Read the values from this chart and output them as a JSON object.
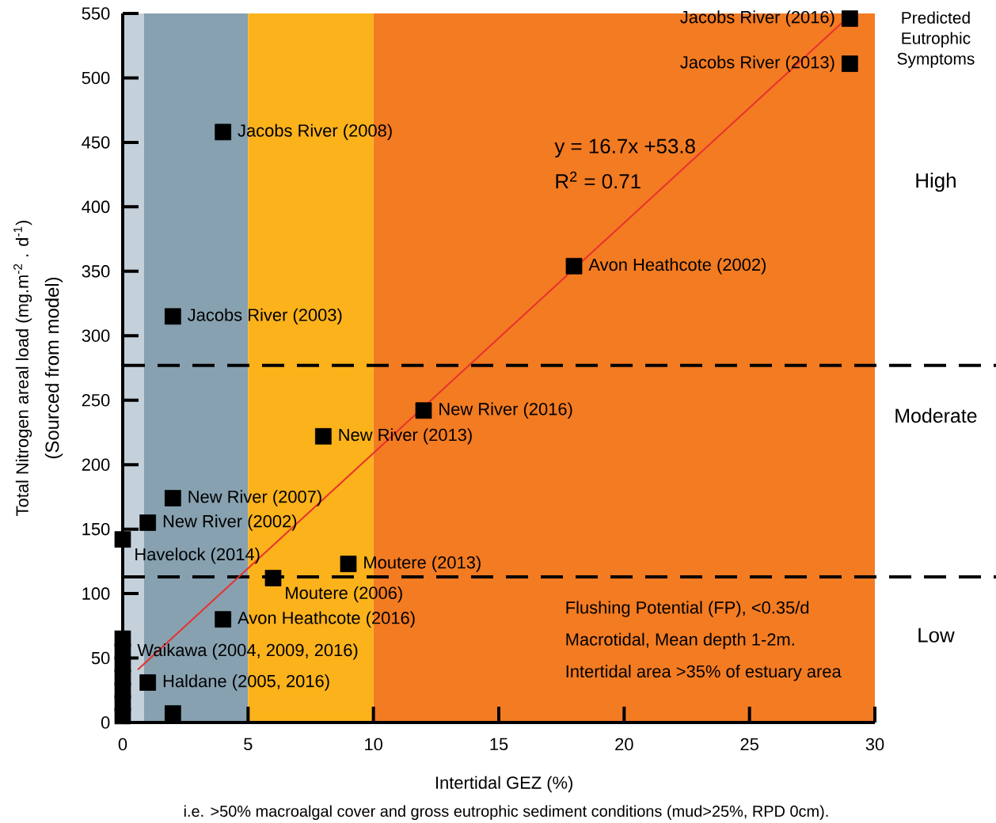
{
  "chart_data": {
    "type": "scatter",
    "xlabel": "Intertidal GEZ (%)",
    "ylabel": "Total Nitrogen areal load (mg.m$^{-2}$ . d$^{-1}$)",
    "xlim": [
      0,
      30
    ],
    "ylim": [
      0,
      550
    ],
    "xticks": [
      0,
      5,
      10,
      15,
      20,
      25,
      30
    ],
    "yticks": [
      0,
      50,
      100,
      150,
      200,
      250,
      300,
      350,
      400,
      450,
      500,
      550
    ],
    "grid": false,
    "series": [
      {
        "marker": "square",
        "color": "#000000",
        "x": [
          29,
          29,
          4,
          18,
          2,
          12,
          8,
          2,
          1,
          0,
          9,
          6,
          4,
          1,
          2,
          0,
          0,
          0,
          0,
          0,
          0,
          0
        ],
        "values": [
          546,
          511,
          458,
          354,
          315,
          242,
          222,
          174,
          155,
          142,
          123,
          112,
          80,
          31,
          7,
          65,
          55,
          45,
          35,
          25,
          15,
          5
        ]
      },
      {
        "type": "line",
        "line_style": "solid",
        "color": "#e8312f",
        "x": [
          0.6,
          28.7
        ],
        "values": [
          41,
          543
        ]
      }
    ],
    "bands": [
      {
        "axis": "x",
        "from": 0,
        "to": 0.85,
        "color": "#c5d1da"
      },
      {
        "axis": "x",
        "from": 0.85,
        "to": 5,
        "color": "#87a1b0"
      },
      {
        "axis": "x",
        "from": 5,
        "to": 10,
        "color": "#fbb21b"
      },
      {
        "axis": "x",
        "from": 10,
        "to": 30,
        "color": "#f37b22"
      }
    ],
    "ref_lines": [
      {
        "axis": "y",
        "value": 277,
        "line_style": "dashed",
        "color": "#000000"
      },
      {
        "axis": "y",
        "value": 113,
        "line_style": "dashed",
        "color": "#000000"
      }
    ],
    "annotations": [
      "Predicted Eutrophic Symptoms",
      "y = 16.7x +53.8",
      "R$^{2}$ = 0.71",
      "Flushing Potential (FP), <0.35/d",
      "Macrotidal, Mean depth 1-2m.",
      "Intertidal area >35% of estuary area",
      "(Sourced from model)",
      "i.e. >50% macroalgal cover and gross eutrophic sediment conditions (mud>25%, RPD 0cm).",
      "High",
      "Moderate",
      "Low",
      {
        "text": "Jacobs River (2016)",
        "x": 29,
        "y": 546
      },
      {
        "text": "Jacobs River (2013)",
        "x": 29,
        "y": 511
      },
      {
        "text": "Jacobs River (2008)",
        "x": 4,
        "y": 458
      },
      {
        "text": "Avon Heathcote (2002)",
        "x": 18,
        "y": 354
      },
      {
        "text": "Jacobs River (2003)",
        "x": 2,
        "y": 315
      },
      {
        "text": "New River (2016)",
        "x": 12,
        "y": 242
      },
      {
        "text": "New River (2013)",
        "x": 8,
        "y": 222
      },
      {
        "text": "New River (2007)",
        "x": 2,
        "y": 174
      },
      {
        "text": "New River (2002)",
        "x": 1,
        "y": 155
      },
      {
        "text": "Havelock (2014)",
        "x": 0,
        "y": 142
      },
      {
        "text": "Moutere (2013)",
        "x": 9,
        "y": 123
      },
      {
        "text": "Moutere  (2006)",
        "x": 6,
        "y": 112
      },
      {
        "text": "Avon Heathcote (2016)",
        "x": 4,
        "y": 80
      },
      {
        "text": "Waikawa (2004, 2009, 2016)",
        "x": 0,
        "y": 55
      },
      {
        "text": "Haldane (2005, 2016)",
        "x": 1,
        "y": 31
      }
    ]
  }
}
